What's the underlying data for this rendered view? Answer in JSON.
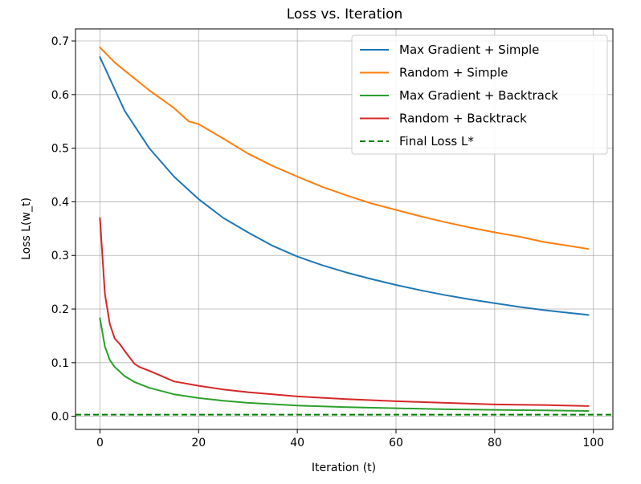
{
  "chart_data": {
    "type": "line",
    "title": "Loss vs. Iteration",
    "xlabel": "Iteration (t)",
    "ylabel": "Loss L(w_t)",
    "xlim": [
      -4.95,
      103.95
    ],
    "ylim": [
      -0.0245,
      0.7225
    ],
    "xticks": [
      0,
      20,
      40,
      60,
      80,
      100
    ],
    "yticks": [
      0.0,
      0.1,
      0.2,
      0.3,
      0.4,
      0.5,
      0.6,
      0.7
    ],
    "ytick_labels": [
      "0.0",
      "0.1",
      "0.2",
      "0.3",
      "0.4",
      "0.5",
      "0.6",
      "0.7"
    ],
    "grid": true,
    "legend_position": "top-right",
    "series": [
      {
        "name": "Max Gradient + Simple",
        "color": "#1f77b4",
        "x": [
          0,
          5,
          10,
          15,
          20,
          25,
          30,
          35,
          40,
          45,
          50,
          55,
          60,
          65,
          70,
          75,
          80,
          85,
          90,
          95,
          99
        ],
        "y": [
          0.67,
          0.57,
          0.5,
          0.447,
          0.405,
          0.37,
          0.343,
          0.318,
          0.298,
          0.282,
          0.268,
          0.256,
          0.245,
          0.235,
          0.226,
          0.218,
          0.211,
          0.204,
          0.198,
          0.193,
          0.189
        ]
      },
      {
        "name": "Random + Simple",
        "color": "#ff7f0e",
        "x": [
          0,
          3,
          5,
          10,
          15,
          18,
          20,
          25,
          30,
          35,
          40,
          45,
          50,
          55,
          60,
          65,
          70,
          75,
          80,
          85,
          90,
          95,
          99
        ],
        "y": [
          0.688,
          0.66,
          0.645,
          0.608,
          0.575,
          0.55,
          0.545,
          0.518,
          0.49,
          0.467,
          0.447,
          0.428,
          0.412,
          0.397,
          0.385,
          0.373,
          0.362,
          0.352,
          0.343,
          0.335,
          0.325,
          0.318,
          0.312
        ]
      },
      {
        "name": "Max Gradient + Backtrack",
        "color": "#2ca02c",
        "x": [
          0,
          1,
          2,
          3,
          5,
          7,
          10,
          15,
          20,
          25,
          30,
          40,
          50,
          60,
          70,
          80,
          90,
          99
        ],
        "y": [
          0.183,
          0.13,
          0.105,
          0.092,
          0.075,
          0.064,
          0.053,
          0.041,
          0.034,
          0.029,
          0.025,
          0.02,
          0.017,
          0.015,
          0.013,
          0.012,
          0.011,
          0.01
        ]
      },
      {
        "name": "Random + Backtrack",
        "color": "#d62728",
        "x": [
          0,
          1,
          2,
          3,
          4,
          5,
          7,
          8,
          10,
          12,
          15,
          20,
          25,
          30,
          35,
          40,
          50,
          60,
          70,
          80,
          90,
          99
        ],
        "y": [
          0.37,
          0.228,
          0.172,
          0.145,
          0.135,
          0.122,
          0.098,
          0.092,
          0.085,
          0.077,
          0.065,
          0.057,
          0.05,
          0.045,
          0.041,
          0.037,
          0.032,
          0.028,
          0.025,
          0.022,
          0.021,
          0.019
        ]
      }
    ],
    "reference_lines": [
      {
        "name": "Final Loss L*",
        "color": "#008000",
        "y": 0.003,
        "style": "dashed"
      }
    ]
  }
}
